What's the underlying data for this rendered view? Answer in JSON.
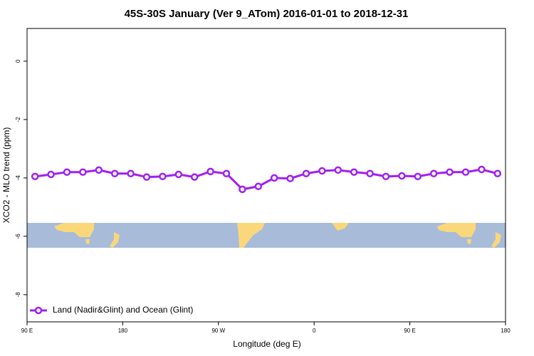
{
  "chart_data": {
    "type": "line",
    "title": "45S-30S January (Ver 9_ATom)   2016-01-01 to 2018-12-31",
    "x_label": "Longitude (deg E)",
    "y_label": "XCO2 - MLO trend (ppm)",
    "x": [
      97.5,
      112.5,
      127.5,
      142.5,
      157.5,
      172.5,
      187.5,
      202.5,
      217.5,
      232.5,
      247.5,
      262.5,
      277.5,
      292.5,
      307.5,
      322.5,
      337.5,
      352.5,
      367.5,
      382.5,
      397.5,
      412.5,
      427.5,
      442.5,
      457.5,
      472.5,
      487.5,
      502.5,
      517.5,
      532.5
    ],
    "series": [
      {
        "name": "Land (Nadir&Glint) and Ocean (Glint)",
        "color": "#a020f0",
        "values": [
          -3.95,
          -3.88,
          -3.8,
          -3.8,
          -3.73,
          -3.85,
          -3.85,
          -3.97,
          -3.95,
          -3.88,
          -3.97,
          -3.78,
          -3.85,
          -4.39,
          -4.29,
          -4.0,
          -4.02,
          -3.85,
          -3.76,
          -3.73,
          -3.8,
          -3.85,
          -3.95,
          -3.93,
          -3.95,
          -3.85,
          -3.8,
          -3.8,
          -3.71,
          -3.85
        ]
      }
    ],
    "xlim": [
      90,
      540
    ],
    "xticks": [
      {
        "value": 90,
        "label": "90 E"
      },
      180,
      {
        "value": 270,
        "label": "90 W"
      },
      {
        "value": 360,
        "label": "0"
      },
      {
        "value": 450,
        "label": "90 E"
      },
      {
        "value": 540,
        "label": "180"
      }
    ],
    "ylim": [
      -8.93,
      1.12
    ],
    "yticks": [
      0,
      -2,
      -4,
      -6,
      -8
    ],
    "legend": "bottom-left"
  }
}
